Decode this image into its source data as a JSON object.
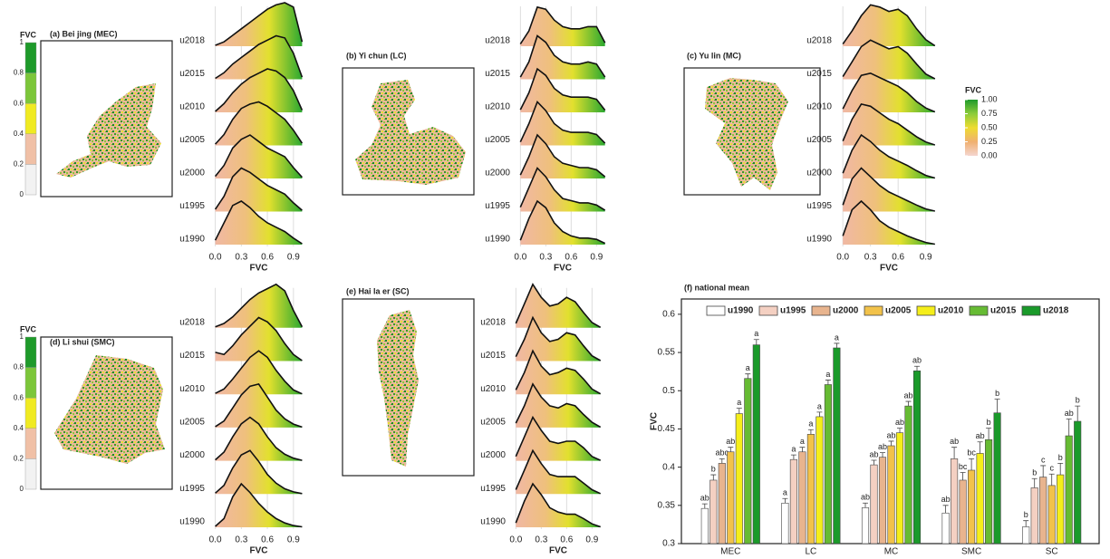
{
  "chart_data": [
    {
      "type": "ridgeline",
      "title": "(a) Bei jing (MEC)",
      "x_label": "FVC",
      "x": [
        0.0,
        0.1,
        0.2,
        0.3,
        0.4,
        0.5,
        0.6,
        0.7,
        0.8,
        0.9,
        1.0
      ],
      "xlim": [
        -0.1,
        1.1
      ],
      "xticks": [
        {
          "value": 0,
          "label": "0.0"
        },
        0.3,
        0.6,
        0.9
      ],
      "grid": true,
      "map_legend": {
        "title": "FVC",
        "ticks": [
          0,
          0.2,
          0.4,
          0.6,
          0.8,
          1
        ],
        "colors": [
          "#f2f2f2",
          "#f0c0a6",
          "#f0ea22",
          "#7cc63a",
          "#1e9a2a"
        ]
      },
      "series": [
        {
          "name": "u1990",
          "values": [
            0.1,
            0.5,
            0.9,
            1.0,
            0.85,
            0.65,
            0.5,
            0.4,
            0.3,
            0.15,
            0.02
          ]
        },
        {
          "name": "u1995",
          "values": [
            0.05,
            0.35,
            0.8,
            1.0,
            0.9,
            0.75,
            0.6,
            0.5,
            0.4,
            0.2,
            0.03
          ]
        },
        {
          "name": "u2000",
          "values": [
            0.05,
            0.3,
            0.7,
            0.9,
            1.0,
            0.85,
            0.7,
            0.6,
            0.5,
            0.25,
            0.03
          ]
        },
        {
          "name": "u2005",
          "values": [
            0.03,
            0.25,
            0.6,
            0.85,
            0.95,
            1.0,
            0.9,
            0.75,
            0.6,
            0.35,
            0.05
          ]
        },
        {
          "name": "u2010",
          "values": [
            0.02,
            0.2,
            0.45,
            0.65,
            0.8,
            0.9,
            1.0,
            0.95,
            0.8,
            0.5,
            0.05
          ]
        },
        {
          "name": "u2015",
          "values": [
            0.02,
            0.15,
            0.35,
            0.5,
            0.65,
            0.8,
            0.9,
            1.0,
            0.95,
            0.6,
            0.05
          ]
        },
        {
          "name": "u2018",
          "values": [
            0.02,
            0.1,
            0.25,
            0.4,
            0.55,
            0.7,
            0.85,
            0.95,
            1.0,
            0.9,
            0.1
          ]
        }
      ]
    },
    {
      "type": "ridgeline",
      "title": "(b) Yi chun (LC)",
      "x_label": "FVC",
      "x": [
        0.0,
        0.1,
        0.2,
        0.3,
        0.4,
        0.5,
        0.6,
        0.7,
        0.8,
        0.9,
        1.0
      ],
      "xlim": [
        -0.1,
        1.1
      ],
      "xticks": [
        {
          "value": 0,
          "label": "0.0"
        },
        0.3,
        0.6,
        0.9
      ],
      "grid": true,
      "series": [
        {
          "name": "u1990",
          "values": [
            0.1,
            0.6,
            1.0,
            0.85,
            0.5,
            0.3,
            0.2,
            0.15,
            0.15,
            0.12,
            0.03
          ]
        },
        {
          "name": "u1995",
          "values": [
            0.1,
            0.55,
            1.0,
            0.8,
            0.5,
            0.3,
            0.25,
            0.2,
            0.2,
            0.15,
            0.03
          ]
        },
        {
          "name": "u2000",
          "values": [
            0.08,
            0.5,
            1.0,
            0.8,
            0.5,
            0.35,
            0.3,
            0.25,
            0.25,
            0.2,
            0.04
          ]
        },
        {
          "name": "u2005",
          "values": [
            0.08,
            0.5,
            1.0,
            0.8,
            0.5,
            0.35,
            0.3,
            0.3,
            0.3,
            0.25,
            0.05
          ]
        },
        {
          "name": "u2010",
          "values": [
            0.06,
            0.45,
            1.0,
            0.85,
            0.55,
            0.4,
            0.35,
            0.35,
            0.35,
            0.3,
            0.05
          ]
        },
        {
          "name": "u2015",
          "values": [
            0.05,
            0.4,
            1.0,
            0.85,
            0.55,
            0.4,
            0.35,
            0.35,
            0.4,
            0.35,
            0.05
          ]
        },
        {
          "name": "u2018",
          "values": [
            0.05,
            0.35,
            0.9,
            0.85,
            0.6,
            0.45,
            0.4,
            0.4,
            0.45,
            0.45,
            0.08
          ]
        }
      ]
    },
    {
      "type": "ridgeline",
      "title": "(c) Yu lin (MC)",
      "x_label": "FVC",
      "x": [
        0.0,
        0.1,
        0.2,
        0.3,
        0.4,
        0.5,
        0.6,
        0.7,
        0.8,
        0.9,
        1.0
      ],
      "xlim": [
        -0.1,
        1.1
      ],
      "xticks": [
        {
          "value": 0,
          "label": "0.0"
        },
        0.3,
        0.6,
        0.9
      ],
      "grid": true,
      "color_legend": {
        "title": "FVC",
        "ticks": [
          {
            "value": 1,
            "label": "1.00"
          },
          {
            "value": 0.75,
            "label": "0.75"
          },
          {
            "value": 0.5,
            "label": "0.50"
          },
          {
            "value": 0.25,
            "label": "0.25"
          },
          {
            "value": 0,
            "label": "0.00"
          }
        ],
        "colors": [
          "#f4d6d0",
          "#f0b070",
          "#eedc30",
          "#8ccc3a",
          "#1e9a2a"
        ]
      },
      "series": [
        {
          "name": "u1990",
          "values": [
            0.2,
            0.8,
            1.0,
            0.8,
            0.55,
            0.4,
            0.3,
            0.2,
            0.12,
            0.05,
            0.01
          ]
        },
        {
          "name": "u1995",
          "values": [
            0.15,
            0.75,
            1.0,
            0.8,
            0.6,
            0.45,
            0.35,
            0.25,
            0.15,
            0.06,
            0.01
          ]
        },
        {
          "name": "u2000",
          "values": [
            0.12,
            0.65,
            1.0,
            0.85,
            0.65,
            0.5,
            0.4,
            0.3,
            0.18,
            0.07,
            0.01
          ]
        },
        {
          "name": "u2005",
          "values": [
            0.1,
            0.6,
            0.95,
            0.9,
            0.75,
            0.6,
            0.5,
            0.35,
            0.2,
            0.08,
            0.01
          ]
        },
        {
          "name": "u2010",
          "values": [
            0.08,
            0.5,
            0.85,
            0.9,
            0.8,
            0.7,
            0.6,
            0.45,
            0.25,
            0.1,
            0.01
          ]
        },
        {
          "name": "u2015",
          "values": [
            0.06,
            0.4,
            0.75,
            0.9,
            0.8,
            0.7,
            0.75,
            0.6,
            0.35,
            0.12,
            0.01
          ]
        },
        {
          "name": "u2018",
          "values": [
            0.05,
            0.35,
            0.7,
            0.95,
            0.9,
            0.8,
            0.85,
            0.7,
            0.4,
            0.15,
            0.01
          ]
        }
      ]
    },
    {
      "type": "ridgeline",
      "title": "(d) Li shui (SMC)",
      "x_label": "FVC",
      "x": [
        0.0,
        0.1,
        0.2,
        0.3,
        0.4,
        0.5,
        0.6,
        0.7,
        0.8,
        0.9,
        1.0
      ],
      "xlim": [
        -0.1,
        1.1
      ],
      "xticks": [
        {
          "value": 0,
          "label": "0.0"
        },
        0.3,
        0.6,
        0.9
      ],
      "grid": true,
      "map_legend": {
        "title": "FVC",
        "ticks": [
          0,
          0.2,
          0.4,
          0.6,
          0.8,
          1
        ],
        "colors": [
          "#f2f2f2",
          "#f0c0a6",
          "#f0ea22",
          "#7cc63a",
          "#1e9a2a"
        ]
      },
      "series": [
        {
          "name": "u1990",
          "values": [
            0.02,
            0.2,
            0.7,
            1.0,
            0.8,
            0.55,
            0.35,
            0.2,
            0.1,
            0.04,
            0.01
          ]
        },
        {
          "name": "u1995",
          "values": [
            0.02,
            0.2,
            0.6,
            0.9,
            1.0,
            0.75,
            0.45,
            0.25,
            0.12,
            0.05,
            0.01
          ]
        },
        {
          "name": "u2000",
          "values": [
            0.02,
            0.2,
            0.55,
            0.85,
            1.0,
            0.85,
            0.55,
            0.3,
            0.15,
            0.06,
            0.01
          ]
        },
        {
          "name": "u2005",
          "values": [
            0.02,
            0.15,
            0.45,
            0.75,
            0.95,
            1.0,
            0.7,
            0.4,
            0.2,
            0.08,
            0.01
          ]
        },
        {
          "name": "u2010",
          "values": [
            0.02,
            0.12,
            0.35,
            0.6,
            0.85,
            1.0,
            0.85,
            0.55,
            0.3,
            0.1,
            0.01
          ]
        },
        {
          "name": "u2015",
          "values": [
            0.2,
            0.15,
            0.35,
            0.6,
            0.8,
            1.0,
            0.9,
            0.7,
            0.4,
            0.15,
            0.01
          ]
        },
        {
          "name": "u2018",
          "values": [
            0.02,
            0.1,
            0.25,
            0.45,
            0.65,
            0.8,
            0.9,
            1.0,
            0.85,
            0.4,
            0.02
          ]
        }
      ]
    },
    {
      "type": "ridgeline",
      "title": "(e) Hai la er (SC)",
      "x_label": "FVC",
      "x": [
        0.0,
        0.1,
        0.2,
        0.3,
        0.4,
        0.5,
        0.6,
        0.7,
        0.8,
        0.9,
        1.0
      ],
      "xlim": [
        -0.1,
        1.1
      ],
      "xticks": [
        {
          "value": 0,
          "label": "0.0"
        },
        0.3,
        0.6,
        0.9
      ],
      "grid": true,
      "series": [
        {
          "name": "u1990",
          "values": [
            0.1,
            0.6,
            1.0,
            0.75,
            0.45,
            0.35,
            0.3,
            0.3,
            0.2,
            0.08,
            0.01
          ]
        },
        {
          "name": "u1995",
          "values": [
            0.1,
            0.55,
            1.0,
            0.7,
            0.45,
            0.4,
            0.4,
            0.4,
            0.25,
            0.1,
            0.01
          ]
        },
        {
          "name": "u2000",
          "values": [
            0.1,
            0.55,
            1.0,
            0.7,
            0.45,
            0.4,
            0.45,
            0.45,
            0.3,
            0.1,
            0.01
          ]
        },
        {
          "name": "u2005",
          "values": [
            0.1,
            0.5,
            1.0,
            0.7,
            0.5,
            0.45,
            0.55,
            0.5,
            0.3,
            0.12,
            0.01
          ]
        },
        {
          "name": "u2010",
          "values": [
            0.1,
            0.5,
            1.0,
            0.65,
            0.45,
            0.5,
            0.6,
            0.55,
            0.35,
            0.12,
            0.01
          ]
        },
        {
          "name": "u2015",
          "values": [
            0.1,
            0.5,
            1.0,
            0.65,
            0.45,
            0.5,
            0.65,
            0.6,
            0.35,
            0.12,
            0.01
          ]
        },
        {
          "name": "u2018",
          "values": [
            0.1,
            0.55,
            1.0,
            0.7,
            0.5,
            0.55,
            0.7,
            0.6,
            0.35,
            0.12,
            0.01
          ]
        }
      ]
    },
    {
      "type": "bar",
      "title": "(f) national mean",
      "y_label": "FVC",
      "categories": [
        "MEC",
        "LC",
        "MC",
        "SMC",
        "SC"
      ],
      "ylim": [
        0.3,
        0.62
      ],
      "yticks": [
        0.3,
        0.35,
        0.4,
        0.45,
        0.5,
        0.55,
        0.6
      ],
      "legend": "top",
      "series": [
        {
          "name": "u1990",
          "color": "#ffffff",
          "values": [
            0.346,
            0.353,
            0.347,
            0.34,
            0.322
          ],
          "errors": [
            0.006,
            0.006,
            0.006,
            0.01,
            0.008
          ],
          "letters": [
            "ab",
            "a",
            "ab",
            "ab",
            "b"
          ]
        },
        {
          "name": "u1995",
          "color": "#f4d0c2",
          "values": [
            0.383,
            0.41,
            0.403,
            0.411,
            0.373
          ],
          "errors": [
            0.007,
            0.006,
            0.006,
            0.015,
            0.012
          ],
          "letters": [
            "b",
            "a",
            "ab",
            "ab",
            "b"
          ]
        },
        {
          "name": "u2000",
          "color": "#e8b48e",
          "values": [
            0.405,
            0.42,
            0.413,
            0.383,
            0.387
          ],
          "errors": [
            0.006,
            0.006,
            0.006,
            0.01,
            0.015
          ],
          "letters": [
            "abc",
            "a",
            "ab",
            "bc",
            "c"
          ]
        },
        {
          "name": "u2005",
          "color": "#f2c24a",
          "values": [
            0.42,
            0.443,
            0.428,
            0.396,
            0.376
          ],
          "errors": [
            0.006,
            0.006,
            0.006,
            0.015,
            0.015
          ],
          "letters": [
            "ab",
            "a",
            "ab",
            "bc",
            "c"
          ]
        },
        {
          "name": "u2010",
          "color": "#f5ee1a",
          "values": [
            0.47,
            0.466,
            0.445,
            0.418,
            0.39
          ],
          "errors": [
            0.007,
            0.006,
            0.006,
            0.015,
            0.015
          ],
          "letters": [
            "a",
            "a",
            "ab",
            "ab",
            "b"
          ]
        },
        {
          "name": "u2015",
          "color": "#66bb33",
          "values": [
            0.516,
            0.508,
            0.48,
            0.436,
            0.441
          ],
          "errors": [
            0.006,
            0.006,
            0.006,
            0.015,
            0.022
          ],
          "letters": [
            "a",
            "a",
            "ab",
            "b",
            "ab"
          ]
        },
        {
          "name": "u2018",
          "color": "#1a9a2a",
          "values": [
            0.56,
            0.556,
            0.526,
            0.471,
            0.46
          ],
          "errors": [
            0.007,
            0.006,
            0.006,
            0.018,
            0.02
          ],
          "letters": [
            "a",
            "a",
            "ab",
            "b",
            "b"
          ]
        }
      ]
    }
  ]
}
